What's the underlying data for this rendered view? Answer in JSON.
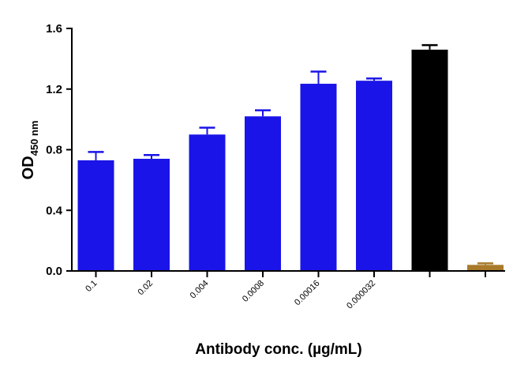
{
  "chart_data": {
    "type": "bar",
    "categories": [
      "0.1",
      "0.02",
      "0.004",
      "0.0008",
      "0.00016",
      "0.000032",
      "",
      ""
    ],
    "values": [
      0.73,
      0.74,
      0.9,
      1.02,
      1.235,
      1.255,
      1.46,
      0.04
    ],
    "errors": [
      0.055,
      0.025,
      0.045,
      0.04,
      0.08,
      0.015,
      0.03,
      0.01
    ],
    "colors": [
      "#1a14e8",
      "#1a14e8",
      "#1a14e8",
      "#1a14e8",
      "#1a14e8",
      "#1a14e8",
      "#000000",
      "#a87a2a"
    ],
    "ylim": [
      0,
      1.6
    ],
    "yticks": [
      "0.0",
      "0.4",
      "0.8",
      "1.2",
      "1.6"
    ],
    "ylabel": "OD",
    "ylabel_subscript": "450 nm",
    "xlabel": "Antibody conc. (µg/mL)",
    "grid": false
  }
}
